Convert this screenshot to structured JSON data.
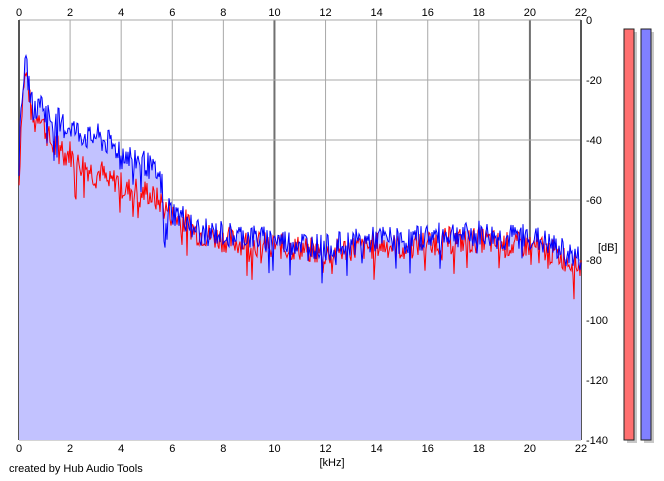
{
  "footer": {
    "credit": "created by Hub Audio Tools"
  },
  "colors": {
    "background": "#ffffff",
    "fill": "#c2c2ff",
    "left_channel": "#ff0000",
    "right_channel": "#0000ff",
    "grid": "#a8a8a8",
    "grid_major": "#707070",
    "meter_left": "#ff7070",
    "meter_right": "#8080ff"
  },
  "chart_data": {
    "type": "line",
    "xlabel": "[kHz]",
    "ylabel": "[dB]",
    "xlim": [
      0,
      22
    ],
    "ylim": [
      -140,
      0
    ],
    "x_ticks": [
      "0",
      "2",
      "4",
      "6",
      "8",
      "10",
      "12",
      "14",
      "16",
      "18",
      "20",
      "22"
    ],
    "y_ticks": [
      "0",
      "-20",
      "-40",
      "-60",
      "-80",
      "-100",
      "-120",
      "-140"
    ],
    "grid": true,
    "grid_major_x": [
      10,
      20
    ],
    "x": [
      0,
      0.1,
      0.2,
      0.3,
      0.4,
      0.5,
      0.6,
      0.8,
      1,
      1.2,
      1.4,
      1.6,
      1.8,
      2,
      2.2,
      2.5,
      2.8,
      3,
      3.2,
      3.5,
      3.8,
      4,
      4.2,
      4.5,
      4.8,
      5,
      5.2,
      5.4,
      5.6,
      5.7,
      5.8,
      6,
      6.2,
      6.5,
      7,
      7.5,
      8,
      8.5,
      9,
      9.5,
      10,
      10.5,
      11,
      11.5,
      12,
      12.5,
      13,
      13.5,
      14,
      14.5,
      15,
      15.5,
      16,
      16.5,
      17,
      17.5,
      18,
      18.5,
      19,
      19.5,
      20,
      20.5,
      21,
      21.5,
      22
    ],
    "series": [
      {
        "channel": "left",
        "values": [
          -55,
          -30,
          -20,
          -18,
          -25,
          -32,
          -35,
          -30,
          -36,
          -40,
          -43,
          -40,
          -45,
          -44,
          -48,
          -48,
          -50,
          -52,
          -50,
          -55,
          -53,
          -55,
          -57,
          -56,
          -58,
          -57,
          -59,
          -60,
          -61,
          -63,
          -63,
          -65,
          -66,
          -67,
          -71,
          -72,
          -73,
          -74,
          -74,
          -75,
          -75,
          -76,
          -76,
          -77,
          -78,
          -77,
          -76,
          -76,
          -75,
          -75,
          -76,
          -75,
          -74,
          -74,
          -73,
          -74,
          -73,
          -74,
          -75,
          -75,
          -75,
          -76,
          -78,
          -80,
          -82
        ]
      },
      {
        "channel": "right",
        "values": [
          -48,
          -25,
          -17,
          -16,
          -22,
          -28,
          -30,
          -26,
          -30,
          -32,
          -35,
          -33,
          -36,
          -35,
          -37,
          -38,
          -40,
          -38,
          -40,
          -41,
          -43,
          -42,
          -45,
          -46,
          -47,
          -48,
          -50,
          -52,
          -55,
          -80,
          -62,
          -64,
          -65,
          -66,
          -70,
          -71,
          -71,
          -72,
          -72,
          -73,
          -73,
          -74,
          -74,
          -75,
          -76,
          -75,
          -74,
          -74,
          -73,
          -73,
          -74,
          -73,
          -72,
          -72,
          -71,
          -72,
          -71,
          -72,
          -73,
          -72,
          -72,
          -74,
          -76,
          -78,
          -80
        ]
      }
    ],
    "meters": [
      {
        "channel": "left",
        "level_db": -3
      },
      {
        "channel": "right",
        "level_db": -3
      }
    ]
  }
}
